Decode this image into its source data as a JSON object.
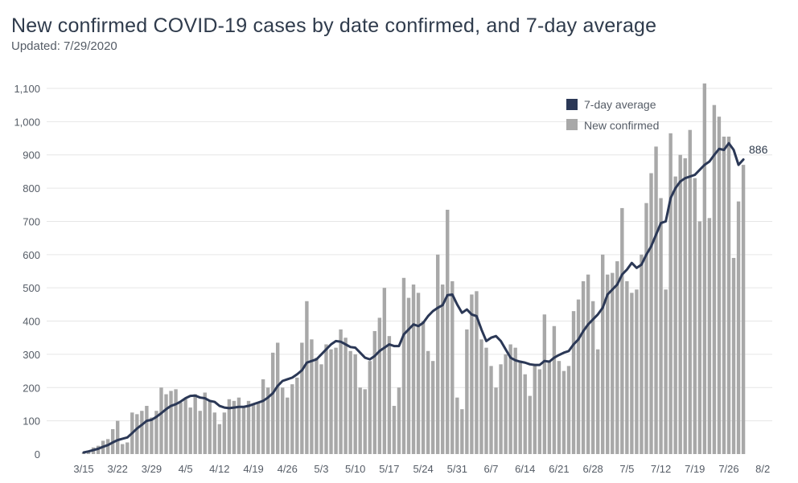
{
  "title": "New confirmed COVID-19 cases by date confirmed, and 7-day average",
  "subtitle": "Updated: 7/29/2020",
  "colors": {
    "bar": "#a8a8a8",
    "line": "#2b3856",
    "grid": "#e6e6e6",
    "text": "#555c66"
  },
  "chart_data": {
    "type": "bar",
    "ylim": [
      0,
      1100
    ],
    "y_ticks": [
      0,
      100,
      200,
      300,
      400,
      500,
      600,
      700,
      800,
      900,
      1000,
      1100
    ],
    "y_tick_labels": [
      "0",
      "100",
      "200",
      "300",
      "400",
      "500",
      "600",
      "700",
      "800",
      "900",
      "1,000",
      "1,100"
    ],
    "x_tick_labels": [
      "3/15",
      "3/22",
      "3/29",
      "4/5",
      "4/12",
      "4/19",
      "4/26",
      "5/3",
      "5/10",
      "5/17",
      "5/24",
      "5/31",
      "6/7",
      "6/14",
      "6/21",
      "6/28",
      "7/5",
      "7/12",
      "7/19",
      "7/26",
      "8/2"
    ],
    "grid": true,
    "legend_position": "top-right",
    "series": [
      {
        "name": "New confirmed",
        "type": "bar",
        "start": "3/15",
        "values": [
          5,
          10,
          20,
          25,
          40,
          45,
          75,
          100,
          30,
          35,
          125,
          120,
          130,
          145,
          110,
          130,
          200,
          180,
          190,
          195,
          155,
          165,
          140,
          180,
          130,
          185,
          160,
          125,
          90,
          125,
          165,
          160,
          170,
          145,
          160,
          150,
          155,
          225,
          200,
          305,
          335,
          200,
          170,
          210,
          230,
          335,
          460,
          345,
          290,
          270,
          330,
          315,
          320,
          375,
          350,
          310,
          300,
          200,
          195,
          280,
          370,
          410,
          500,
          355,
          145,
          200,
          530,
          470,
          510,
          485,
          400,
          310,
          280,
          600,
          510,
          735,
          520,
          170,
          135,
          375,
          480,
          490,
          345,
          320,
          265,
          200,
          270,
          300,
          330,
          320,
          280,
          240,
          175,
          265,
          255,
          420,
          280,
          385,
          280,
          250,
          265,
          430,
          465,
          520,
          540,
          460,
          315,
          600,
          540,
          545,
          580,
          740,
          520,
          485,
          495,
          600,
          755,
          845,
          925,
          770,
          495,
          965,
          835,
          900,
          890,
          975,
          830,
          700,
          1115,
          710,
          1050,
          1015,
          955,
          955,
          590,
          760,
          870
        ]
      },
      {
        "name": "7-day average",
        "type": "line",
        "start": "3/15",
        "values": [
          5,
          8,
          12,
          16,
          22,
          27,
          35,
          42,
          46,
          50,
          63,
          77,
          88,
          100,
          103,
          112,
          123,
          135,
          145,
          150,
          158,
          168,
          175,
          176,
          170,
          168,
          160,
          157,
          145,
          140,
          138,
          140,
          142,
          142,
          145,
          150,
          155,
          160,
          170,
          183,
          205,
          220,
          225,
          230,
          240,
          252,
          275,
          280,
          285,
          300,
          315,
          330,
          340,
          338,
          330,
          322,
          320,
          305,
          290,
          285,
          295,
          310,
          320,
          330,
          325,
          325,
          360,
          375,
          390,
          385,
          395,
          415,
          430,
          440,
          448,
          478,
          480,
          450,
          425,
          435,
          420,
          415,
          375,
          340,
          350,
          355,
          340,
          315,
          290,
          282,
          278,
          275,
          270,
          268,
          268,
          280,
          278,
          290,
          298,
          305,
          310,
          330,
          345,
          370,
          390,
          405,
          420,
          440,
          480,
          495,
          510,
          540,
          555,
          575,
          560,
          570,
          600,
          625,
          660,
          695,
          700,
          770,
          800,
          820,
          830,
          835,
          840,
          855,
          870,
          880,
          900,
          918,
          915,
          935,
          915,
          870,
          886
        ]
      }
    ],
    "annotations": [
      "886"
    ]
  }
}
